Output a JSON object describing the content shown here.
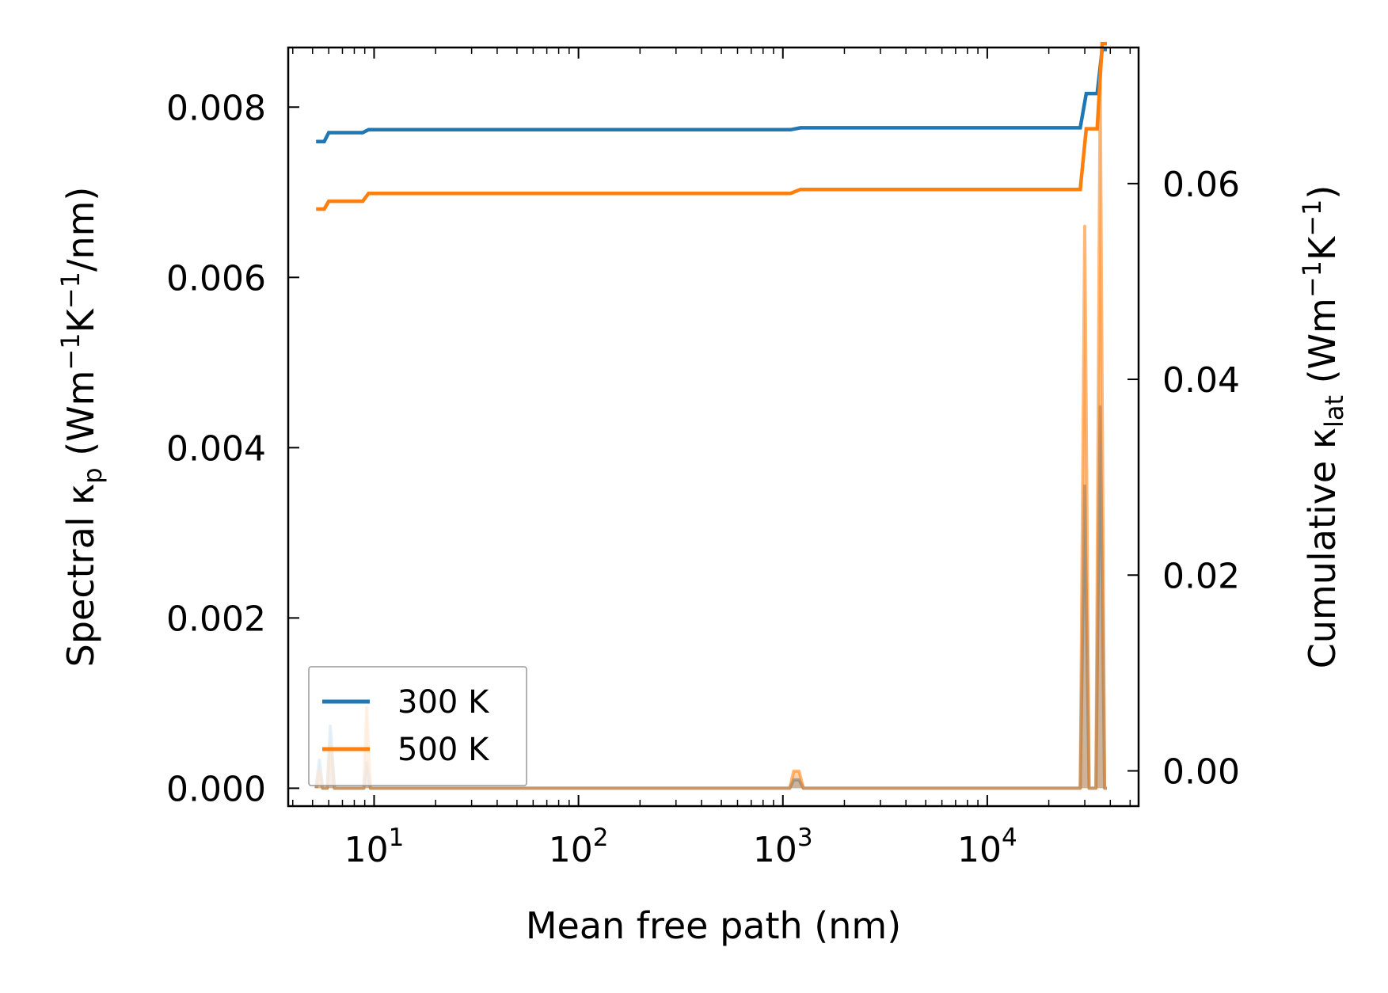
{
  "chart_data": {
    "type": "line",
    "xscale": "log",
    "xlim": [
      3.8,
      55000
    ],
    "ylim_left": [
      -0.00021,
      0.0087
    ],
    "ylim_right": [
      -0.0036,
      0.0739
    ],
    "xlabel": "Mean free path (nm)",
    "ylabel_left": {
      "main": "Spectral κ",
      "sub": "p",
      "units_pre": " (Wm",
      "sup1": "−1",
      "units_mid": "K",
      "sup2": "−1",
      "units_post": "/nm)"
    },
    "ylabel_right": {
      "main": "Cumulative κ",
      "sub": "lat",
      "units_pre": " (Wm",
      "sup1": "−1",
      "units_mid": "K",
      "sup2": "−1",
      "units_post": ")"
    },
    "x_ticks": [
      {
        "value": 10,
        "base": "10",
        "exp": "1"
      },
      {
        "value": 100,
        "base": "10",
        "exp": "2"
      },
      {
        "value": 1000,
        "base": "10",
        "exp": "3"
      },
      {
        "value": 10000,
        "base": "10",
        "exp": "4"
      }
    ],
    "y_ticks_left": [
      {
        "value": 0.0,
        "label": "0.000"
      },
      {
        "value": 0.002,
        "label": "0.002"
      },
      {
        "value": 0.004,
        "label": "0.004"
      },
      {
        "value": 0.006,
        "label": "0.006"
      },
      {
        "value": 0.008,
        "label": "0.008"
      }
    ],
    "y_ticks_right": [
      {
        "value": 0.0,
        "label": "0.00"
      },
      {
        "value": 0.02,
        "label": "0.02"
      },
      {
        "value": 0.04,
        "label": "0.04"
      },
      {
        "value": 0.06,
        "label": "0.06"
      }
    ],
    "legend": {
      "placement": "lower-left",
      "entries": [
        {
          "name": "300 K",
          "color": "#1f77b4"
        },
        {
          "name": "500 K",
          "color": "#ff7f0e"
        }
      ]
    },
    "series": [
      {
        "name": "300 K",
        "color": "#1f77b4",
        "cumulative": {
          "x": [
            5.2,
            5.7,
            6.0,
            8.8,
            9.4,
            1090,
            1220,
            28500,
            30500,
            34500,
            36500,
            38500
          ],
          "y": [
            0.0643,
            0.0643,
            0.0652,
            0.0652,
            0.0655,
            0.0655,
            0.0657,
            0.0657,
            0.0692,
            0.0692,
            0.0737,
            0.0737
          ]
        },
        "spectral": {
          "x": [
            5.2,
            5.4,
            5.6,
            5.9,
            6.1,
            6.4,
            8.9,
            9.2,
            9.6,
            1080,
            1130,
            1200,
            1260,
            28500,
            30000,
            31500,
            34000,
            35700,
            37500,
            38500
          ],
          "y": [
            0,
            0.00033,
            0,
            0,
            0.00073,
            0,
            0,
            0.0003,
            0,
            0,
            0.0001,
            0.0001,
            0,
            0,
            0.00355,
            0,
            0,
            0.00448,
            0,
            0
          ]
        }
      },
      {
        "name": "500 K",
        "color": "#ff7f0e",
        "cumulative": {
          "x": [
            5.2,
            5.7,
            6.0,
            8.8,
            9.4,
            1090,
            1220,
            28500,
            30500,
            34500,
            36500,
            38500
          ],
          "y": [
            0.0574,
            0.0574,
            0.0582,
            0.0582,
            0.059,
            0.059,
            0.0594,
            0.0594,
            0.0656,
            0.0656,
            0.0743,
            0.0743
          ]
        },
        "spectral": {
          "x": [
            5.2,
            5.4,
            5.6,
            5.9,
            6.1,
            6.4,
            8.9,
            9.2,
            9.6,
            1080,
            1130,
            1200,
            1260,
            28500,
            30000,
            31500,
            34000,
            35700,
            37500,
            38500
          ],
          "y": [
            0,
            0.00022,
            0,
            0,
            0.0005,
            0,
            0,
            0.00095,
            0,
            0,
            0.0002,
            0.0002,
            0,
            0,
            0.0066,
            0,
            0,
            0.0083,
            0,
            0
          ]
        }
      }
    ]
  }
}
